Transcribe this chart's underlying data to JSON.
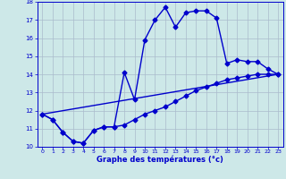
{
  "xlabel": "Graphe des températures (°c)",
  "bg_color": "#cde8e8",
  "line_color": "#0000cc",
  "grid_color": "#aabbcc",
  "xlim": [
    -0.5,
    23.5
  ],
  "ylim": [
    10,
    18
  ],
  "xticks": [
    0,
    1,
    2,
    3,
    4,
    5,
    6,
    7,
    8,
    9,
    10,
    11,
    12,
    13,
    14,
    15,
    16,
    17,
    18,
    19,
    20,
    21,
    22,
    23
  ],
  "yticks": [
    10,
    11,
    12,
    13,
    14,
    15,
    16,
    17,
    18
  ],
  "series1_x": [
    0,
    1,
    2,
    3,
    4,
    5,
    6,
    7,
    8,
    9,
    10,
    11,
    12,
    13,
    14,
    15,
    16,
    17,
    18,
    19,
    20,
    21,
    22,
    23
  ],
  "series1_y": [
    11.8,
    11.5,
    10.8,
    10.3,
    10.2,
    10.9,
    11.1,
    11.1,
    14.1,
    12.6,
    15.9,
    17.0,
    17.7,
    16.6,
    17.4,
    17.5,
    17.5,
    17.1,
    14.6,
    14.8,
    14.7,
    14.7,
    14.3,
    14.0
  ],
  "series2_x": [
    0,
    1,
    2,
    3,
    4,
    5,
    6,
    7,
    8,
    9,
    10,
    11,
    12,
    13,
    14,
    15,
    16,
    17,
    18,
    19,
    20,
    21,
    22,
    23
  ],
  "series2_y": [
    11.8,
    11.5,
    10.8,
    10.3,
    10.2,
    10.9,
    11.1,
    11.1,
    11.2,
    11.5,
    11.8,
    12.0,
    12.2,
    12.5,
    12.8,
    13.1,
    13.3,
    13.5,
    13.7,
    13.8,
    13.9,
    14.0,
    14.0,
    14.0
  ],
  "series3_x": [
    0,
    23
  ],
  "series3_y": [
    11.8,
    14.0
  ],
  "marker": "D",
  "marker_size": 2.5,
  "line_width": 1.0
}
